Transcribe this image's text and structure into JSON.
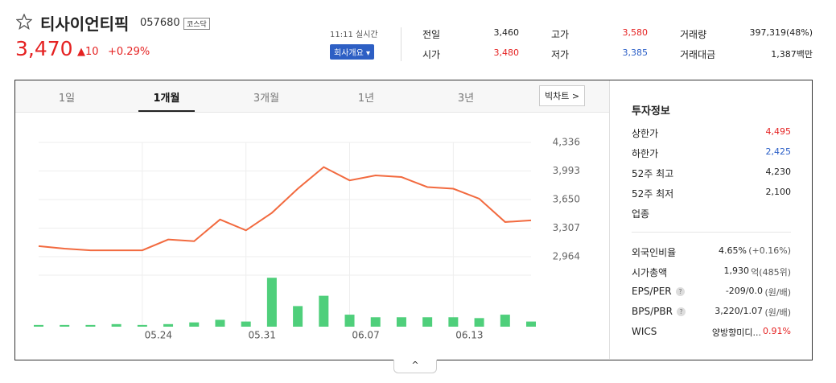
{
  "header": {
    "name": "티사이언티픽",
    "code": "057680",
    "market": "코스닥",
    "price": "3,470",
    "change": "10",
    "change_rate": "+0.29%",
    "time": "11:11 실시간",
    "company_button": "회사개요"
  },
  "quote": [
    {
      "label": "전일",
      "value": "3,460"
    },
    {
      "label": "시가",
      "value": "3,480",
      "color": "#e52222"
    },
    {
      "label": "고가",
      "value": "3,580",
      "color": "#e52222"
    },
    {
      "label": "저가",
      "value": "3,385",
      "color": "#2b5fc7"
    },
    {
      "label": "거래량",
      "value": "397,319(48%)"
    },
    {
      "label": "거래대금",
      "value": "1,387백만"
    }
  ],
  "tabs": {
    "items": [
      "1일",
      "1개월",
      "3개월",
      "1년",
      "3년"
    ],
    "selected": 1,
    "big_chart": "빅차트"
  },
  "chart_data": [
    {
      "type": "line",
      "categories": [
        null,
        null,
        null,
        null,
        "05.24",
        null,
        null,
        null,
        "05.31",
        null,
        null,
        null,
        "06.07",
        null,
        null,
        null,
        "06.13",
        null,
        null,
        null
      ],
      "series": [
        {
          "color": "#f26a3f",
          "values": [
            3090,
            3060,
            3040,
            3040,
            3040,
            3170,
            3150,
            3410,
            3280,
            3490,
            3780,
            4040,
            3880,
            3940,
            3920,
            3800,
            3780,
            3660,
            3380,
            3400
          ]
        }
      ],
      "ylim": [
        2809,
        4597
      ],
      "yticks": [
        {
          "value": 4336,
          "label": "4,336"
        },
        {
          "value": 3993,
          "label": "3,993"
        },
        {
          "value": 3650,
          "label": "3,650"
        },
        {
          "value": 3307,
          "label": "3,307"
        },
        {
          "value": 2964,
          "label": "2,964"
        }
      ],
      "grid": true
    },
    {
      "type": "bar",
      "color": "#4fcf7b",
      "values": [
        2,
        2,
        2,
        3,
        2,
        3,
        5,
        8,
        6,
        57,
        24,
        36,
        14,
        11,
        11,
        11,
        11,
        10,
        14,
        6
      ],
      "ylim": [
        0,
        60
      ]
    }
  ],
  "invest": {
    "title": "투자정보",
    "group1": [
      {
        "label": "상한가",
        "value": "4,495",
        "color": "#e52222"
      },
      {
        "label": "하한가",
        "value": "2,425",
        "color": "#2b5fc7"
      },
      {
        "label": "52주 최고",
        "value": "4,230"
      },
      {
        "label": "52주 최저",
        "value": "2,100"
      },
      {
        "label": "업종"
      }
    ],
    "group2": [
      {
        "label": "외국인비율",
        "value": "4.65%",
        "extra": "(+0.16%)"
      },
      {
        "label": "시가총액",
        "value": "1,930",
        "extra": "억(485위)"
      },
      {
        "label": "EPS/PER",
        "help": "?",
        "value": "-209/0.0",
        "extra": "(원/배)"
      },
      {
        "label": "BPS/PBR",
        "help": "?",
        "value": "3,220/1.07",
        "extra": "(원/배)"
      },
      {
        "label": "WICS",
        "value": "양방향미디...",
        "extra": "0.91%",
        "extra_color": "#e52222"
      }
    ]
  }
}
